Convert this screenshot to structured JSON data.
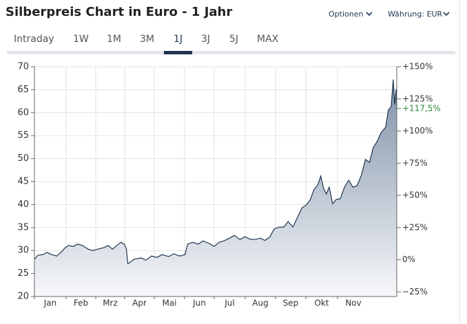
{
  "header": {
    "title": "Silberpreis Chart in Euro - 1 Jahr",
    "options": "Optionen",
    "currency": "Währung: EUR"
  },
  "tabs": [
    "Intraday",
    "1W",
    "1M",
    "3M",
    "1J",
    "3J",
    "5J",
    "MAX"
  ],
  "active_tab": "1J",
  "chart_data": {
    "type": "area",
    "x": [
      0,
      0.5,
      1.2,
      1.8,
      2.5,
      3.2,
      3.8,
      4.4,
      4.9,
      5.6,
      6.2,
      6.9,
      7.7,
      8.4,
      9.1,
      9.9,
      10.6,
      11.2,
      11.9,
      12.4,
      12.9,
      13.2,
      13.4,
      13.6,
      14.3,
      15.3,
      16.0,
      16.8,
      17.6,
      18.3,
      19.3,
      20.0,
      20.8,
      21.6,
      22.0,
      22.7,
      23.5,
      24.2,
      25.0,
      25.8,
      26.5,
      27.2,
      28.0,
      28.7,
      29.5,
      30.2,
      30.9,
      31.6,
      32.4,
      33.1,
      33.8,
      34.4,
      35.1,
      35.8,
      36.4,
      37.1,
      37.8,
      38.4,
      39.0,
      39.6,
      40.1,
      40.7,
      41.1,
      41.5,
      41.9,
      42.3,
      42.8,
      43.3,
      43.9,
      44.5,
      45.1,
      45.7,
      46.3,
      46.9,
      47.5,
      48.1,
      48.6,
      49.2,
      49.8,
      50.4,
      50.8,
      51.2,
      51.5,
      51.7,
      51.9,
      52.0
    ],
    "series": [
      {
        "color": "#1e3550",
        "values": [
          28.1,
          29.0,
          29.1,
          29.6,
          29.1,
          28.8,
          29.6,
          30.6,
          31.1,
          30.9,
          31.4,
          31.1,
          30.3,
          30.0,
          30.3,
          30.6,
          31.1,
          30.3,
          31.2,
          31.8,
          31.4,
          30.3,
          27.2,
          27.3,
          28.1,
          28.4,
          27.9,
          28.8,
          28.5,
          29.1,
          28.7,
          29.3,
          28.8,
          29.1,
          31.4,
          31.8,
          31.4,
          32.1,
          31.6,
          30.9,
          31.8,
          32.1,
          32.7,
          33.3,
          32.4,
          33.0,
          32.5,
          32.4,
          32.7,
          32.2,
          33.0,
          34.7,
          35.1,
          35.1,
          36.3,
          35.1,
          37.4,
          39.3,
          39.9,
          41.1,
          43.2,
          44.4,
          46.2,
          43.5,
          42.3,
          43.8,
          40.2,
          41.1,
          41.3,
          43.8,
          45.3,
          43.8,
          44.1,
          46.3,
          49.8,
          49.2,
          52.3,
          53.8,
          55.8,
          56.8,
          60.6,
          61.3,
          67.2,
          61.8,
          65.1,
          61.0
        ]
      }
    ],
    "xlim": [
      0,
      52
    ],
    "xticks": [
      {
        "value": 0,
        "label": "Jan"
      },
      {
        "value": 4.55,
        "label": "Feb"
      },
      {
        "value": 8.8,
        "label": "Mrz"
      },
      {
        "value": 12.95,
        "label": "Apr"
      },
      {
        "value": 17.2,
        "label": "Mai"
      },
      {
        "value": 21.55,
        "label": "Jun"
      },
      {
        "value": 25.8,
        "label": "Jul"
      },
      {
        "value": 30.25,
        "label": "Aug"
      },
      {
        "value": 34.6,
        "label": "Sep"
      },
      {
        "value": 38.95,
        "label": "Okt"
      },
      {
        "value": 43.5,
        "label": "Nov"
      }
    ],
    "ylim": [
      20,
      70
    ],
    "yticks": [
      20,
      25,
      30,
      35,
      40,
      45,
      50,
      55,
      60,
      65,
      70
    ],
    "y2lim": [
      -28.57,
      150
    ],
    "y2ticks": [
      {
        "value": -25,
        "label": "−25%"
      },
      {
        "value": 0,
        "label": "0%"
      },
      {
        "value": 25,
        "label": "+25%"
      },
      {
        "value": 50,
        "label": "+50%"
      },
      {
        "value": 75,
        "label": "+75%"
      },
      {
        "value": 100,
        "label": "+100%"
      },
      {
        "value": 125,
        "label": "+125%"
      },
      {
        "value": 150,
        "label": "+150%"
      }
    ],
    "current_change": {
      "value": 117.5,
      "label": "+117,5%"
    },
    "current_color": "#2e8b3e",
    "grid": true
  }
}
